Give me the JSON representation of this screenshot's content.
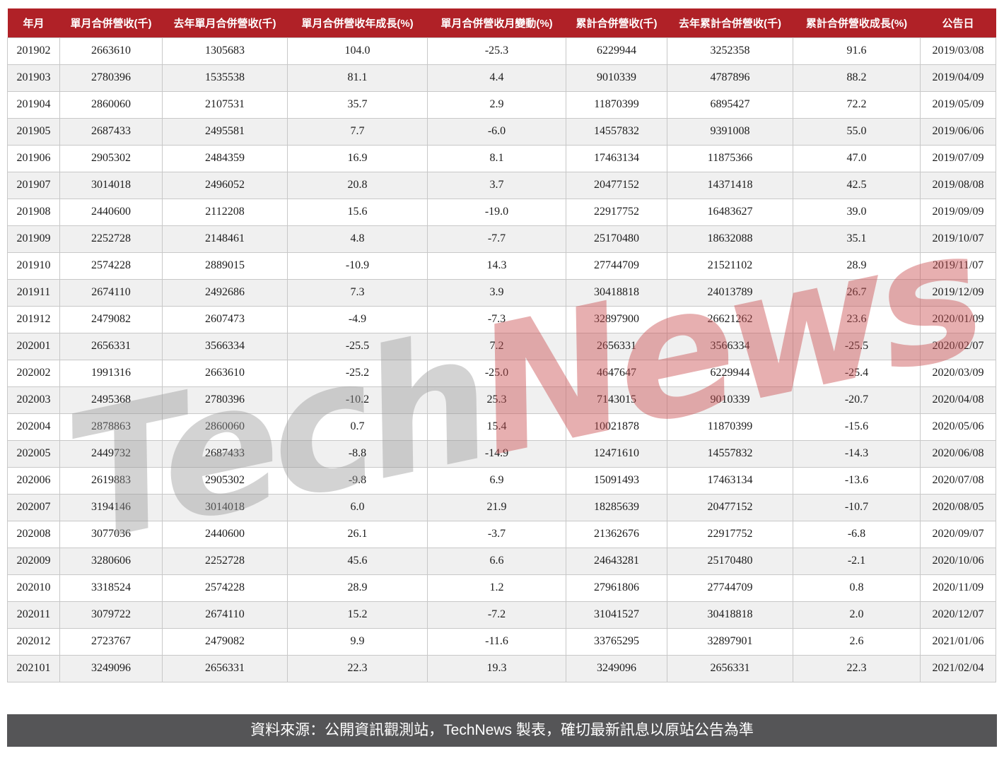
{
  "chart_data": {
    "type": "table",
    "columns": [
      "年月",
      "單月合併營收(千)",
      "去年單月合併營收(千)",
      "單月合併營收年成長(%)",
      "單月合併營收月變動(%)",
      "累計合併營收(千)",
      "去年累計合併營收(千)",
      "累計合併營收成長(%)",
      "公告日"
    ],
    "rows": [
      [
        "201902",
        "2663610",
        "1305683",
        "104.0",
        "-25.3",
        "6229944",
        "3252358",
        "91.6",
        "2019/03/08"
      ],
      [
        "201903",
        "2780396",
        "1535538",
        "81.1",
        "4.4",
        "9010339",
        "4787896",
        "88.2",
        "2019/04/09"
      ],
      [
        "201904",
        "2860060",
        "2107531",
        "35.7",
        "2.9",
        "11870399",
        "6895427",
        "72.2",
        "2019/05/09"
      ],
      [
        "201905",
        "2687433",
        "2495581",
        "7.7",
        "-6.0",
        "14557832",
        "9391008",
        "55.0",
        "2019/06/06"
      ],
      [
        "201906",
        "2905302",
        "2484359",
        "16.9",
        "8.1",
        "17463134",
        "11875366",
        "47.0",
        "2019/07/09"
      ],
      [
        "201907",
        "3014018",
        "2496052",
        "20.8",
        "3.7",
        "20477152",
        "14371418",
        "42.5",
        "2019/08/08"
      ],
      [
        "201908",
        "2440600",
        "2112208",
        "15.6",
        "-19.0",
        "22917752",
        "16483627",
        "39.0",
        "2019/09/09"
      ],
      [
        "201909",
        "2252728",
        "2148461",
        "4.8",
        "-7.7",
        "25170480",
        "18632088",
        "35.1",
        "2019/10/07"
      ],
      [
        "201910",
        "2574228",
        "2889015",
        "-10.9",
        "14.3",
        "27744709",
        "21521102",
        "28.9",
        "2019/11/07"
      ],
      [
        "201911",
        "2674110",
        "2492686",
        "7.3",
        "3.9",
        "30418818",
        "24013789",
        "26.7",
        "2019/12/09"
      ],
      [
        "201912",
        "2479082",
        "2607473",
        "-4.9",
        "-7.3",
        "32897900",
        "26621262",
        "23.6",
        "2020/01/09"
      ],
      [
        "202001",
        "2656331",
        "3566334",
        "-25.5",
        "7.2",
        "2656331",
        "3566334",
        "-25.5",
        "2020/02/07"
      ],
      [
        "202002",
        "1991316",
        "2663610",
        "-25.2",
        "-25.0",
        "4647647",
        "6229944",
        "-25.4",
        "2020/03/09"
      ],
      [
        "202003",
        "2495368",
        "2780396",
        "-10.2",
        "25.3",
        "7143015",
        "9010339",
        "-20.7",
        "2020/04/08"
      ],
      [
        "202004",
        "2878863",
        "2860060",
        "0.7",
        "15.4",
        "10021878",
        "11870399",
        "-15.6",
        "2020/05/06"
      ],
      [
        "202005",
        "2449732",
        "2687433",
        "-8.8",
        "-14.9",
        "12471610",
        "14557832",
        "-14.3",
        "2020/06/08"
      ],
      [
        "202006",
        "2619883",
        "2905302",
        "-9.8",
        "6.9",
        "15091493",
        "17463134",
        "-13.6",
        "2020/07/08"
      ],
      [
        "202007",
        "3194146",
        "3014018",
        "6.0",
        "21.9",
        "18285639",
        "20477152",
        "-10.7",
        "2020/08/05"
      ],
      [
        "202008",
        "3077036",
        "2440600",
        "26.1",
        "-3.7",
        "21362676",
        "22917752",
        "-6.8",
        "2020/09/07"
      ],
      [
        "202009",
        "3280606",
        "2252728",
        "45.6",
        "6.6",
        "24643281",
        "25170480",
        "-2.1",
        "2020/10/06"
      ],
      [
        "202010",
        "3318524",
        "2574228",
        "28.9",
        "1.2",
        "27961806",
        "27744709",
        "0.8",
        "2020/11/09"
      ],
      [
        "202011",
        "3079722",
        "2674110",
        "15.2",
        "-7.2",
        "31041527",
        "30418818",
        "2.0",
        "2020/12/07"
      ],
      [
        "202012",
        "2723767",
        "2479082",
        "9.9",
        "-11.6",
        "33765295",
        "32897901",
        "2.6",
        "2021/01/06"
      ],
      [
        "202101",
        "3249096",
        "2656331",
        "22.3",
        "19.3",
        "3249096",
        "2656331",
        "22.3",
        "2021/02/04"
      ]
    ]
  },
  "watermark": {
    "tech": "Tech",
    "news": "News"
  },
  "footer": {
    "text": "資料來源：公開資訊觀測站，TechNews 製表，確切最新訊息以原站公告為準"
  },
  "colors": {
    "header_bg": "#b02127",
    "footer_bg": "#555557",
    "row_alt": "#f0f0f0",
    "grid_line": "#c8c8c8",
    "watermark_gray": "rgba(150,150,150,0.42)",
    "watermark_red": "rgba(201,77,80,0.45)"
  }
}
